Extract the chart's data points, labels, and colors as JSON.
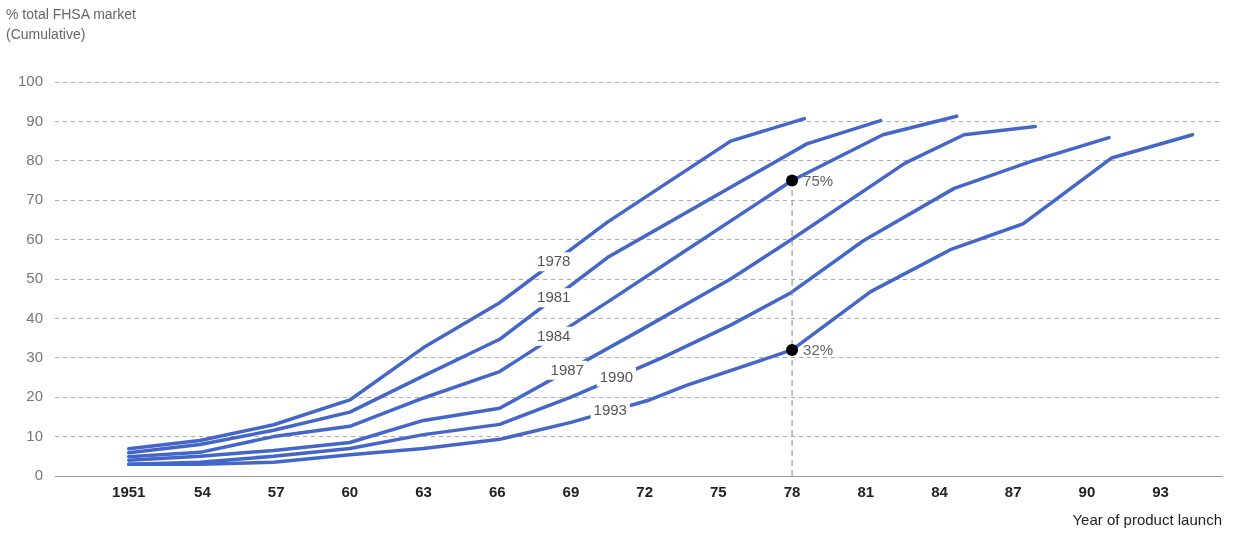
{
  "chart_data": {
    "type": "line",
    "ylabel": "% total FHSA market (Cumulative)",
    "xlabel": "Year of product launch",
    "xlim": [
      1948,
      1995.5
    ],
    "xticks": [
      {
        "value": 1951,
        "label": "1951"
      },
      {
        "value": 1954,
        "label": "54"
      },
      {
        "value": 1957,
        "label": "57"
      },
      {
        "value": 1960,
        "label": "60"
      },
      {
        "value": 1963,
        "label": "63"
      },
      {
        "value": 1966,
        "label": "66"
      },
      {
        "value": 1969,
        "label": "69"
      },
      {
        "value": 1972,
        "label": "72"
      },
      {
        "value": 1975,
        "label": "75"
      },
      {
        "value": 1978,
        "label": "78"
      },
      {
        "value": 1981,
        "label": "81"
      },
      {
        "value": 1984,
        "label": "84"
      },
      {
        "value": 1987,
        "label": "87"
      },
      {
        "value": 1990,
        "label": "90"
      },
      {
        "value": 1993,
        "label": "93"
      }
    ],
    "ylim": [
      0,
      100
    ],
    "yticks": [
      0,
      10,
      20,
      30,
      40,
      50,
      60,
      70,
      80,
      90,
      100
    ],
    "grid": "y",
    "legend": false,
    "marker": "none",
    "line_style": "solid",
    "series": [
      {
        "name": "1978",
        "color": "#4466c8",
        "x": [
          1951,
          1953.9,
          1956.9,
          1960,
          1963,
          1966.1,
          1970.5,
          1975.5,
          1978.5
        ],
        "values": [
          6.9,
          9,
          13,
          19.3,
          32.6,
          44,
          64.5,
          85,
          90.7
        ]
      },
      {
        "name": "1981",
        "color": "#4466c8",
        "x": [
          1951,
          1953.9,
          1956.9,
          1960,
          1963,
          1966.1,
          1970.5,
          1978.6,
          1981.6
        ],
        "values": [
          5.9,
          8,
          11.6,
          16.2,
          25.4,
          34.7,
          55.5,
          84.3,
          90.2
        ]
      },
      {
        "name": "1984",
        "color": "#4466c8",
        "x": [
          1951,
          1953.9,
          1956.9,
          1960,
          1963,
          1966.1,
          1970.5,
          1978,
          1981.7,
          1984.7
        ],
        "values": [
          4.9,
          6,
          10,
          12.6,
          19.8,
          26.5,
          44.2,
          75,
          86.6,
          91.3
        ]
      },
      {
        "name": "1987",
        "color": "#4466c8",
        "x": [
          1951,
          1953.9,
          1956.9,
          1960,
          1963,
          1966.1,
          1971.6,
          1975.5,
          1977.9,
          1982.6,
          1985,
          1987.9
        ],
        "values": [
          4,
          5,
          6.5,
          8.5,
          14.1,
          17.2,
          36.2,
          50,
          59.7,
          79.4,
          86.6,
          88.7
        ]
      },
      {
        "name": "1990",
        "color": "#4466c8",
        "x": [
          1951,
          1953.9,
          1956.9,
          1960,
          1963,
          1966.1,
          1969,
          1972.7,
          1975.5,
          1977.9,
          1980.9,
          1984.6,
          1987.8,
          1990.9
        ],
        "values": [
          3,
          3.5,
          5,
          7,
          10.5,
          13.1,
          20,
          30,
          38.3,
          46.3,
          59.7,
          73,
          80,
          85.9
        ]
      },
      {
        "name": "1993",
        "color": "#4466c8",
        "x": [
          1951,
          1953.9,
          1956.9,
          1960,
          1963,
          1966.1,
          1969,
          1972.2,
          1973.7,
          1978,
          1981.2,
          1984.5,
          1987.4,
          1991,
          1994.3
        ],
        "values": [
          3,
          3,
          3.5,
          5.4,
          7,
          9.3,
          13.6,
          19.3,
          23,
          32,
          46.8,
          57.6,
          64,
          80.7,
          86.6
        ]
      }
    ],
    "ref_lines": [
      {
        "axis": "x",
        "value": 1978,
        "color": "#888888",
        "line_style": "dashed"
      }
    ],
    "annotations": [
      {
        "text": "75%",
        "x": 1978,
        "y": 75
      },
      {
        "text": "32%",
        "x": 1978,
        "y": 32
      }
    ]
  }
}
